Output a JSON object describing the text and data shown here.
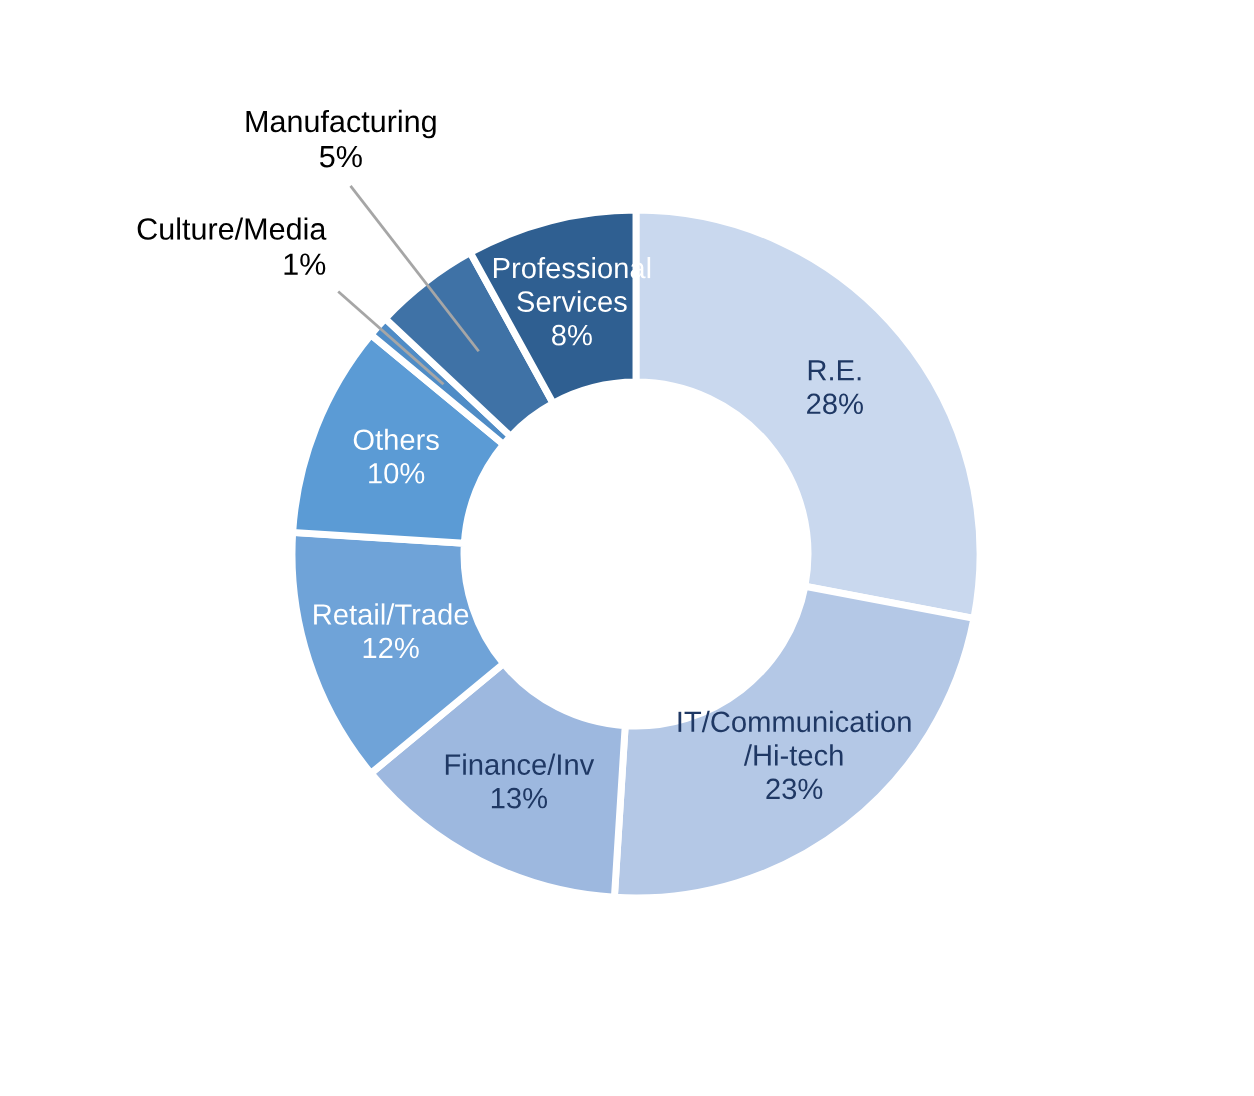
{
  "chart_data": {
    "type": "donut",
    "categories": [
      "R.E.",
      "IT/Communication\n/Hi-tech",
      "Finance/Inv",
      "Retail/Trade",
      "Others",
      "Culture/Media",
      "Manufacturing",
      "Professional\nServices"
    ],
    "values": [
      28,
      23,
      13,
      12,
      10,
      1,
      5,
      8
    ],
    "colors": [
      "#c9d8ee",
      "#b4c8e6",
      "#9db8df",
      "#6fa3d8",
      "#5b9bd5",
      "#4f8cc6",
      "#3f72a6",
      "#2f5f91"
    ],
    "value_labels": [
      "28%",
      "23%",
      "13%",
      "12%",
      "10%",
      "1%",
      "5%",
      "8%"
    ],
    "legend": false
  }
}
